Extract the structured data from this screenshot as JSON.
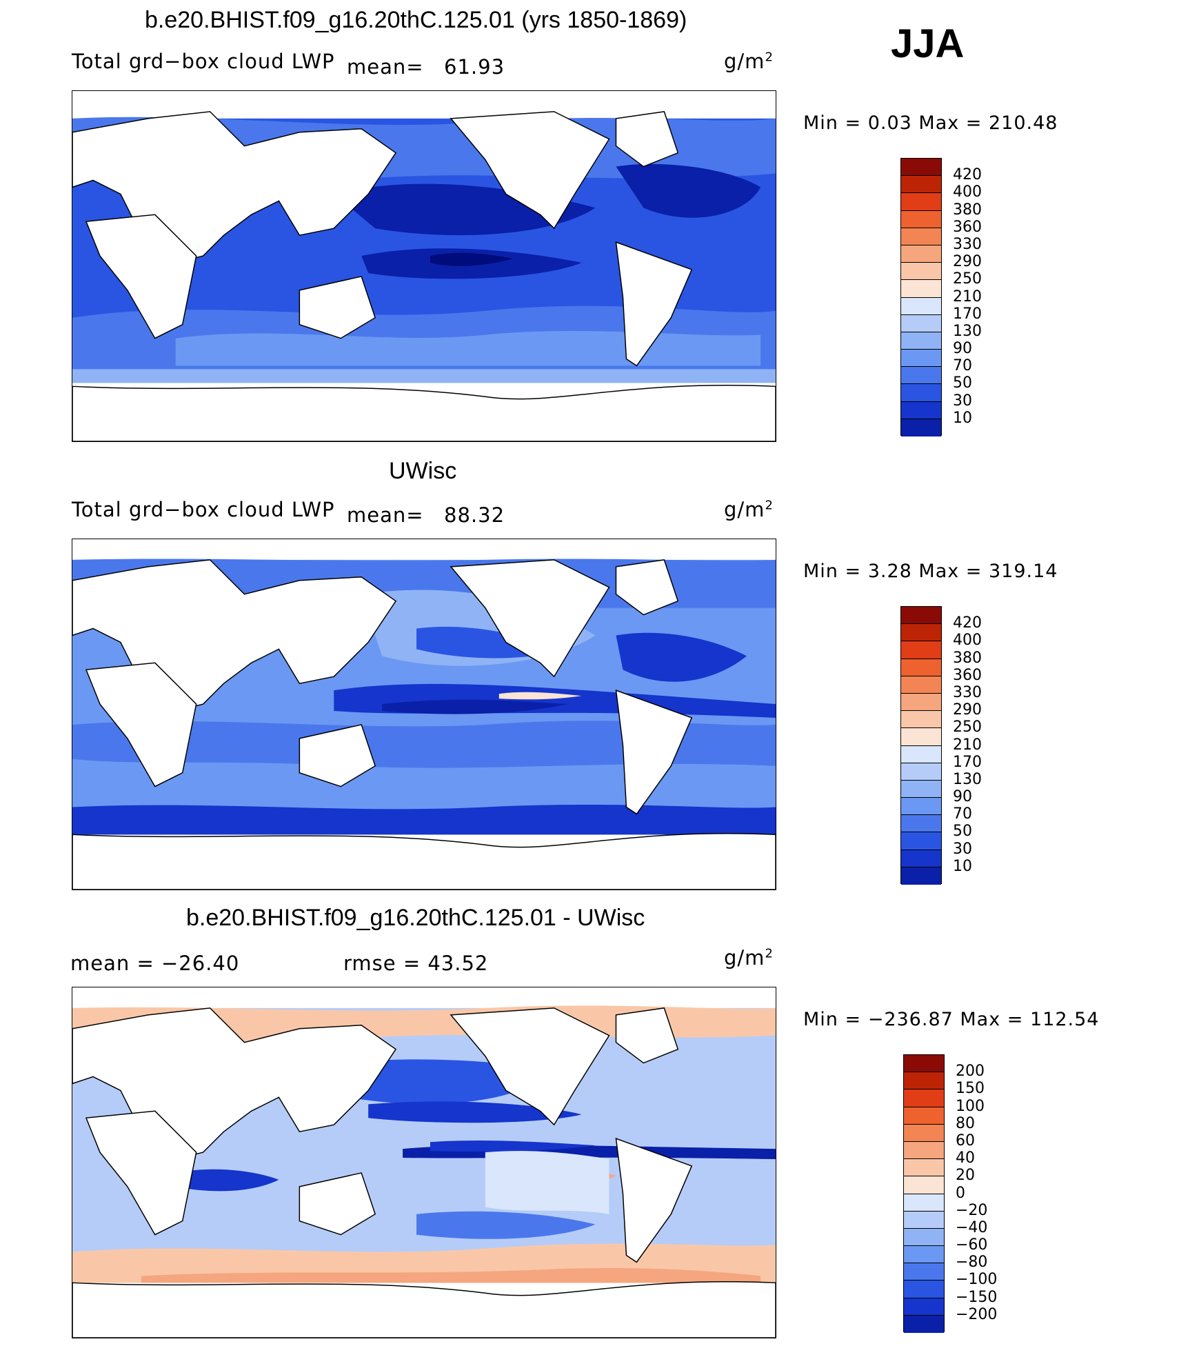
{
  "season": "JJA",
  "colors": {
    "abs_scale": [
      "#000c7b",
      "#0a20a8",
      "#1535cc",
      "#2a55e3",
      "#4a78ec",
      "#6b98f2",
      "#8fb3f5",
      "#b5ccf8",
      "#d9e6fb",
      "#fbe4d3",
      "#f9c7a8",
      "#f5a67e",
      "#f28553",
      "#ee6230",
      "#e13d16",
      "#bd2406",
      "#8a0b06"
    ],
    "diff_scale": [
      "#000c7b",
      "#0a20a8",
      "#1535cc",
      "#2a55e3",
      "#4a78ec",
      "#6b98f2",
      "#8fb3f5",
      "#b5ccf8",
      "#d9e6fb",
      "#fbe4d3",
      "#f9c7a8",
      "#f5a67e",
      "#f28553",
      "#ee6230",
      "#e13d16",
      "#bd2406",
      "#8a0b06"
    ]
  },
  "panels": [
    {
      "title": "b.e20.BHIST.f09_g16.20thC.125.01 (yrs 1850-1869)",
      "variable": "Total grd−box cloud LWP",
      "mean_label": "mean=",
      "mean": "61.93",
      "units": "g/m",
      "units_sup": "2",
      "minmax": "Min =     0.03 Max = 210.48",
      "colorbar_ticks": [
        "420",
        "400",
        "380",
        "360",
        "330",
        "290",
        "250",
        "210",
        "170",
        "130",
        "90",
        "70",
        "50",
        "30",
        "10"
      ]
    },
    {
      "title": "UWisc",
      "variable": "Total grd−box cloud LWP",
      "mean_label": "mean=",
      "mean": "88.32",
      "units": "g/m",
      "units_sup": "2",
      "minmax": "Min =     3.28 Max = 319.14",
      "colorbar_ticks": [
        "420",
        "400",
        "380",
        "360",
        "330",
        "290",
        "250",
        "210",
        "170",
        "130",
        "90",
        "70",
        "50",
        "30",
        "10"
      ]
    },
    {
      "title": "b.e20.BHIST.f09_g16.20thC.125.01 - UWisc",
      "mean_text": "mean = −26.40",
      "rmse_text": "rmse =    43.52",
      "units": "g/m",
      "units_sup": "2",
      "minmax": "Min = −236.87 Max = 112.54",
      "colorbar_ticks": [
        "200",
        "150",
        "100",
        "80",
        "60",
        "40",
        "20",
        "0",
        "−20",
        "−40",
        "−60",
        "−80",
        "−100",
        "−150",
        "−200"
      ]
    }
  ]
}
